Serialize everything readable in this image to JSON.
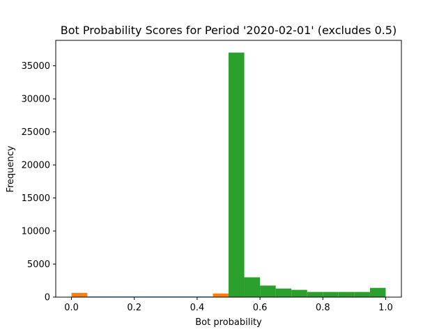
{
  "chart_data": {
    "type": "bar",
    "title": "Bot Probability Scores for Period '2020-02-01' (excludes 0.5)",
    "xlabel": "Bot probability",
    "ylabel": "Frequency",
    "xlim": [
      -0.05,
      1.05
    ],
    "ylim": [
      0,
      38850
    ],
    "xticks": [
      0.0,
      0.2,
      0.4,
      0.6,
      0.8,
      1.0
    ],
    "xtick_labels": [
      "0.0",
      "0.2",
      "0.4",
      "0.6",
      "0.8",
      "1.0"
    ],
    "yticks": [
      0,
      5000,
      10000,
      15000,
      20000,
      25000,
      30000,
      35000
    ],
    "ytick_labels": [
      "0",
      "5000",
      "10000",
      "15000",
      "20000",
      "25000",
      "30000",
      "35000"
    ],
    "grid": false,
    "bin_width": 0.05,
    "series": [
      {
        "color": "#1f77b4",
        "bins": [
          {
            "x0": 0.0,
            "count": 0
          },
          {
            "x0": 0.05,
            "count": 0
          },
          {
            "x0": 0.1,
            "count": 0
          },
          {
            "x0": 0.15,
            "count": 0
          },
          {
            "x0": 0.2,
            "count": 0
          },
          {
            "x0": 0.25,
            "count": 0
          },
          {
            "x0": 0.3,
            "count": 0
          },
          {
            "x0": 0.35,
            "count": 0
          },
          {
            "x0": 0.4,
            "count": 0
          },
          {
            "x0": 0.45,
            "count": 0
          }
        ]
      },
      {
        "color": "#ff7f0e",
        "bins": [
          {
            "x0": 0.0,
            "count": 650
          },
          {
            "x0": 0.45,
            "count": 550
          }
        ]
      },
      {
        "color": "#2ca02c",
        "bins": [
          {
            "x0": 0.5,
            "count": 37000
          },
          {
            "x0": 0.55,
            "count": 3000
          },
          {
            "x0": 0.6,
            "count": 1750
          },
          {
            "x0": 0.65,
            "count": 1300
          },
          {
            "x0": 0.7,
            "count": 1100
          },
          {
            "x0": 0.75,
            "count": 780
          },
          {
            "x0": 0.8,
            "count": 780
          },
          {
            "x0": 0.85,
            "count": 780
          },
          {
            "x0": 0.9,
            "count": 780
          },
          {
            "x0": 0.95,
            "count": 1400
          }
        ]
      }
    ]
  }
}
